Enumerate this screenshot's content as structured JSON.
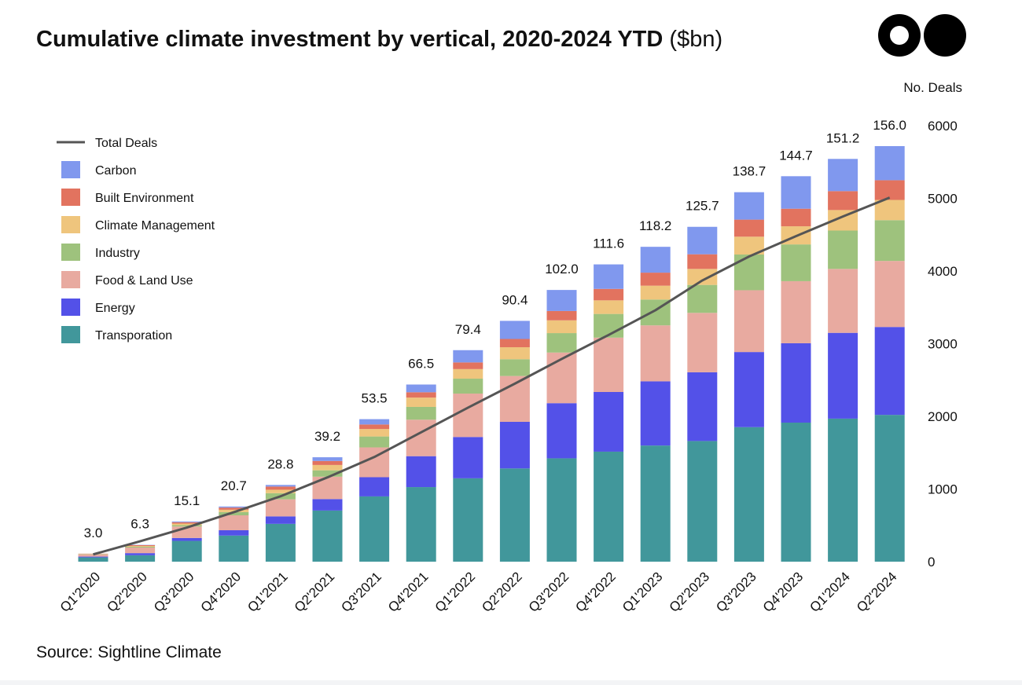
{
  "title_bold": "Cumulative climate investment by vertical, 2020-2024 YTD",
  "title_unit": "($bn)",
  "source": "Source: Sightline Climate",
  "colors": {
    "Transporation": "#41979b",
    "Energy": "#5351e8",
    "Food & Land Use": "#e8aaa0",
    "Industry": "#9ec27d",
    "Climate Management": "#efc57d",
    "Built Environment": "#e2735f",
    "Carbon": "#8098ee",
    "Total Deals": "#555555"
  },
  "chart_data": {
    "type": "bar",
    "stacked": true,
    "categories": [
      "Q1'2020",
      "Q2'2020",
      "Q3'2020",
      "Q4'2020",
      "Q1'2021",
      "Q2'2021",
      "Q3'2021",
      "Q4'2021",
      "Q1'2022",
      "Q2'2022",
      "Q3'2022",
      "Q4'2022",
      "Q1'2023",
      "Q2'2023",
      "Q3'2023",
      "Q4'2023",
      "Q1'2024",
      "Q2'2024"
    ],
    "totals": [
      3.0,
      6.3,
      15.1,
      20.7,
      28.8,
      39.2,
      53.5,
      66.5,
      79.4,
      90.4,
      102.0,
      111.6,
      118.2,
      125.7,
      138.7,
      144.7,
      151.2,
      156.0
    ],
    "series": [
      {
        "name": "Transporation",
        "values": [
          1.6,
          2.4,
          7.8,
          9.8,
          14.2,
          19.2,
          24.5,
          28.0,
          31.3,
          35.0,
          38.8,
          41.3,
          43.6,
          45.3,
          50.5,
          52.2,
          53.7,
          55.1
        ]
      },
      {
        "name": "Energy",
        "values": [
          0.3,
          0.8,
          1.1,
          2.0,
          2.8,
          4.3,
          7.2,
          11.6,
          15.5,
          17.5,
          20.7,
          22.4,
          24.1,
          25.8,
          28.2,
          29.8,
          32.2,
          33.0
        ]
      },
      {
        "name": "Food & Land Use",
        "values": [
          0.8,
          2.1,
          4.3,
          5.6,
          6.4,
          8.4,
          11.2,
          13.7,
          16.3,
          17.2,
          19.0,
          20.4,
          21.0,
          22.3,
          23.2,
          23.3,
          24.0,
          24.8
        ]
      },
      {
        "name": "Industry",
        "values": [
          0.1,
          0.3,
          0.5,
          1.2,
          2.3,
          2.4,
          4.1,
          4.8,
          5.6,
          6.3,
          7.3,
          8.9,
          9.7,
          10.5,
          13.4,
          13.8,
          14.4,
          15.3
        ]
      },
      {
        "name": "Climate Management",
        "values": [
          0.1,
          0.3,
          0.6,
          0.9,
          1.3,
          2.0,
          2.8,
          3.5,
          3.6,
          4.5,
          4.8,
          5.1,
          5.2,
          6.0,
          6.7,
          6.8,
          7.7,
          7.6
        ]
      },
      {
        "name": "Built Environment",
        "values": [
          0.1,
          0.3,
          0.5,
          0.8,
          1.2,
          1.5,
          1.7,
          2.0,
          2.5,
          3.1,
          3.5,
          4.3,
          4.9,
          5.5,
          6.4,
          6.6,
          7.1,
          7.4
        ]
      },
      {
        "name": "Carbon",
        "values": [
          0.0,
          0.1,
          0.3,
          0.4,
          0.6,
          1.4,
          2.0,
          2.9,
          4.6,
          6.8,
          7.9,
          9.2,
          9.7,
          10.3,
          10.3,
          12.2,
          12.1,
          12.8
        ]
      }
    ],
    "line": {
      "name": "Total Deals",
      "values": [
        100,
        280,
        470,
        680,
        900,
        1160,
        1440,
        1780,
        2120,
        2450,
        2790,
        3120,
        3460,
        3870,
        4200,
        4480,
        4750,
        5010
      ]
    },
    "bar_axis_max": 156.0,
    "right_axis": {
      "label": "No. Deals",
      "ticks": [
        0,
        1000,
        2000,
        3000,
        4000,
        5000,
        6000
      ],
      "ylim": [
        0,
        6000
      ]
    },
    "legend": {
      "placement": "top-left",
      "entries": [
        "Total Deals",
        "Carbon",
        "Built Environment",
        "Climate Management",
        "Industry",
        "Food & Land Use",
        "Energy",
        "Transporation"
      ]
    },
    "grid": false
  }
}
